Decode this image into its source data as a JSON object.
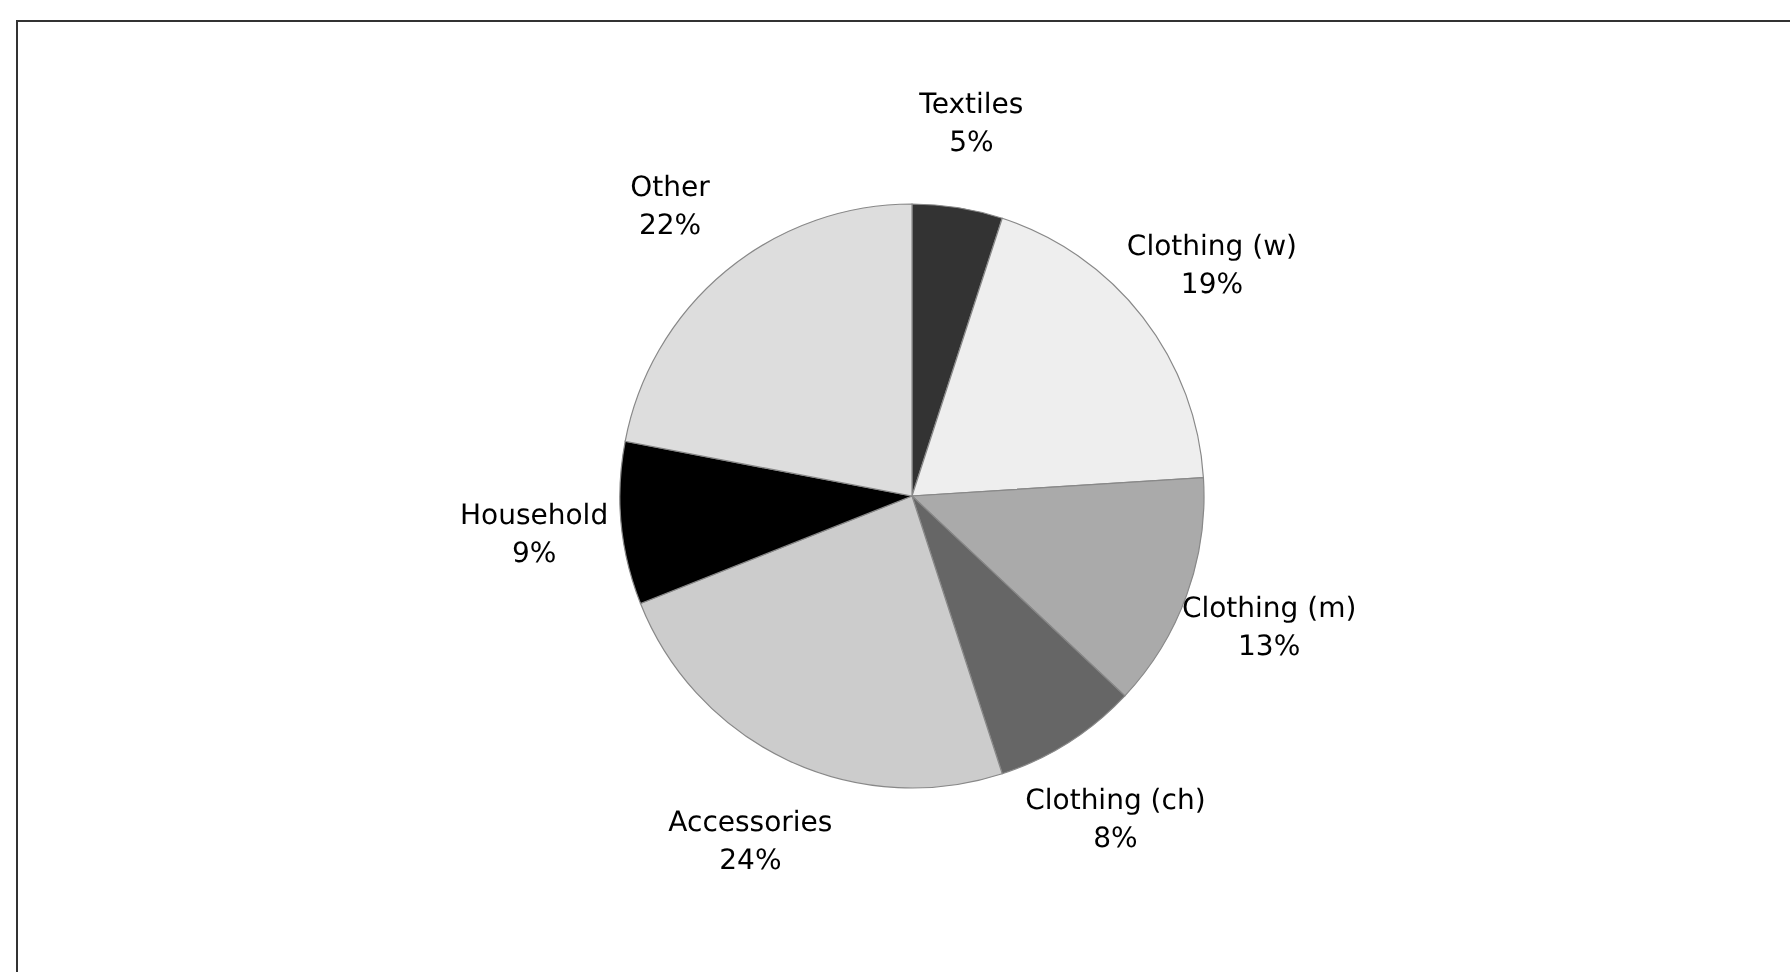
{
  "chart_data": {
    "type": "pie",
    "categories": [
      "Textiles",
      "Clothing (w)",
      "Clothing (m)",
      "Clothing (ch)",
      "Accessories",
      "Household",
      "Other"
    ],
    "values": [
      5,
      19,
      13,
      8,
      24,
      9,
      22
    ],
    "colors": [
      "#333333",
      "#eeeeee",
      "#aaaaaa",
      "#666666",
      "#cccccc",
      "#000000",
      "#dddddd"
    ],
    "value_labels": [
      "5%",
      "19%",
      "13%",
      "8%",
      "24%",
      "9%",
      "22%"
    ]
  }
}
